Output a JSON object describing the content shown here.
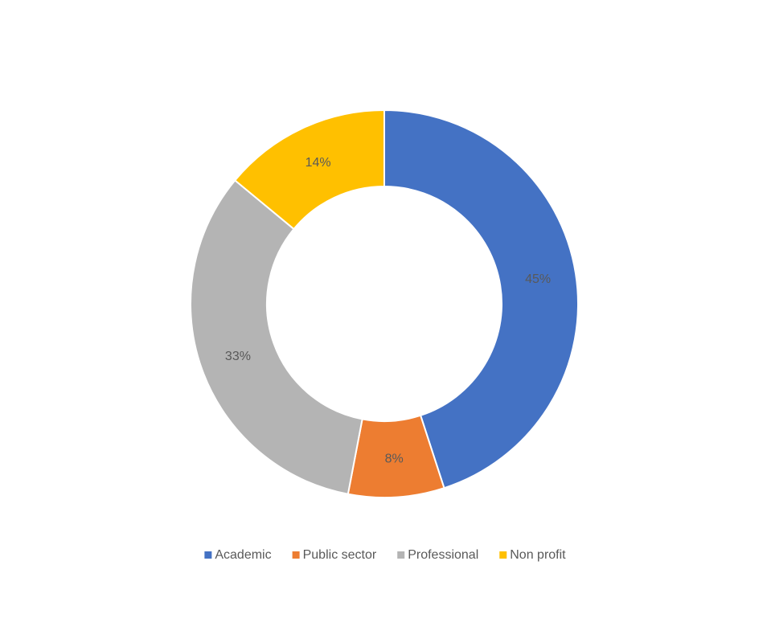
{
  "chart_data": {
    "type": "donut",
    "categories": [
      "Academic",
      "Public sector",
      "Professional",
      "Non profit"
    ],
    "values": [
      45,
      8,
      33,
      14
    ],
    "value_labels": [
      "45%",
      "8%",
      "33%",
      "14%"
    ],
    "colors": [
      "#4472c4",
      "#ed7d31",
      "#b4b4b4",
      "#ffc000"
    ],
    "legend": "bottom"
  }
}
